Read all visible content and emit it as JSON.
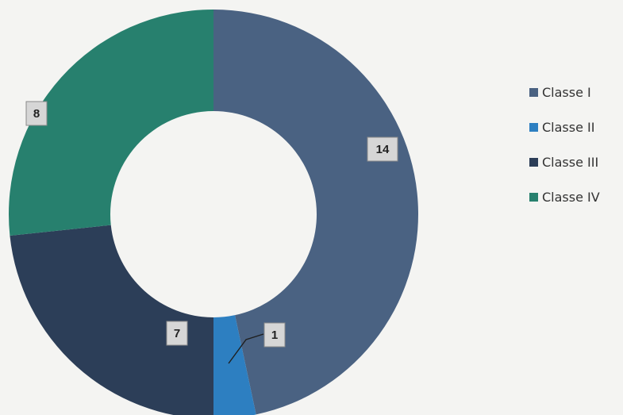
{
  "chart_data": {
    "type": "pie",
    "donut": true,
    "title": "",
    "categories": [
      "Classe I",
      "Classe II",
      "Classe III",
      "Classe IV"
    ],
    "values": [
      14,
      1,
      7,
      8
    ],
    "colors": [
      "#4a6282",
      "#2d7fc1",
      "#2c3e58",
      "#27806e"
    ],
    "data_labels": [
      "14",
      "1",
      "7",
      "8"
    ],
    "legend_placement": "right"
  }
}
